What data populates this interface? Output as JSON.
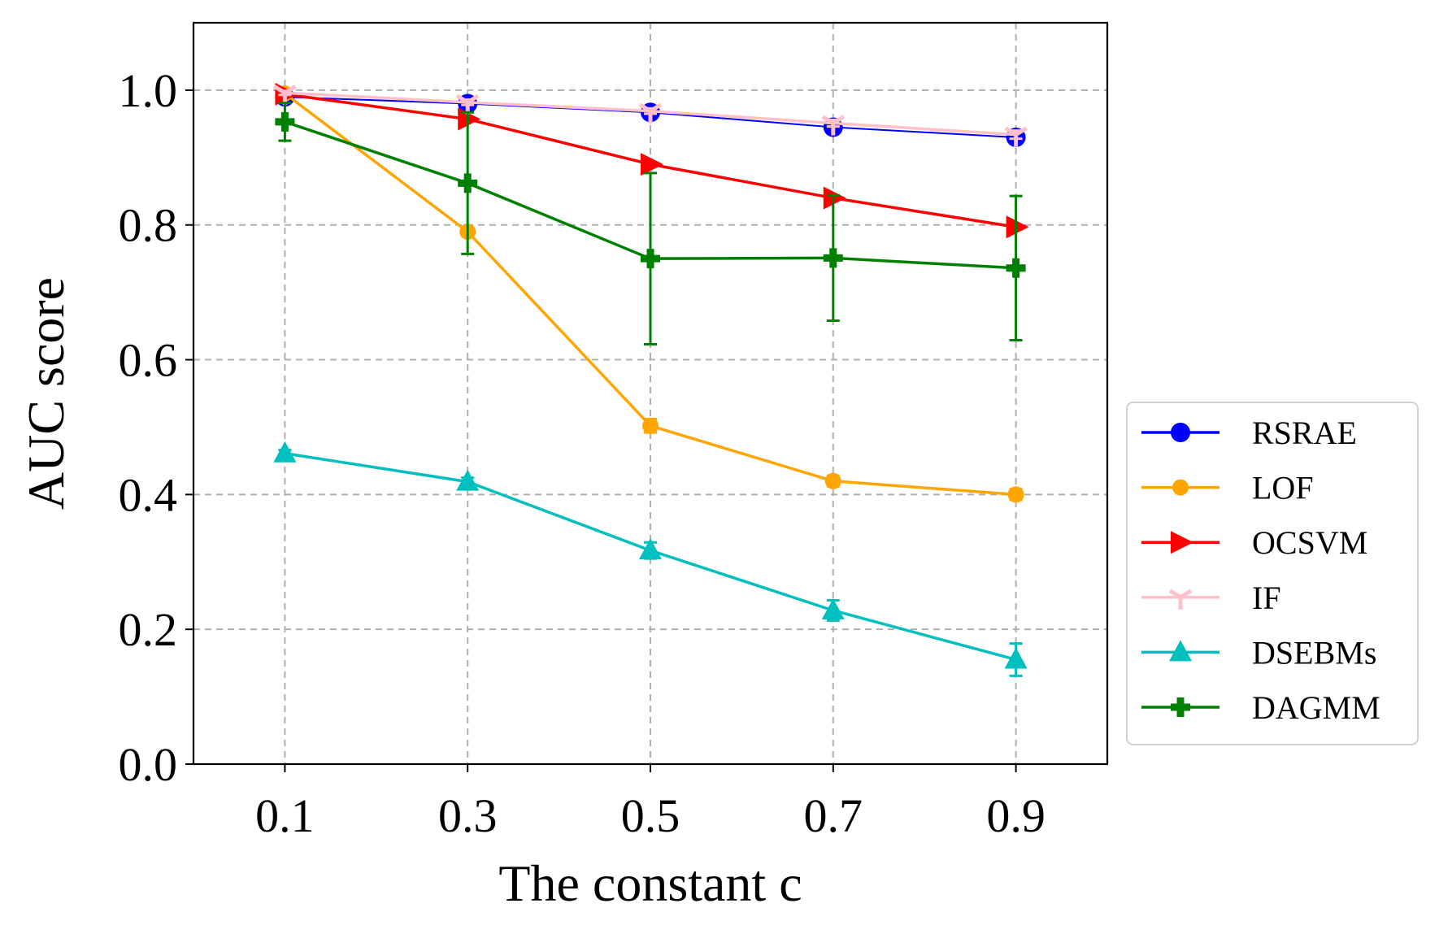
{
  "chart_data": {
    "type": "line",
    "title": "",
    "xlabel": "The constant c",
    "ylabel": "AUC score",
    "x": [
      0.1,
      0.3,
      0.5,
      0.7,
      0.9
    ],
    "x_tick_labels": [
      "0.1",
      "0.3",
      "0.5",
      "0.7",
      "0.9"
    ],
    "xlim": [
      0.0,
      1.0
    ],
    "ylim": [
      0.0,
      1.1
    ],
    "y_ticks": [
      0.0,
      0.2,
      0.4,
      0.6,
      0.8,
      1.0
    ],
    "y_tick_labels": [
      "0.0",
      "0.2",
      "0.4",
      "0.6",
      "0.8",
      "1.0"
    ],
    "grid": true,
    "legend_position": "outside-right",
    "series": [
      {
        "name": "RSRAE",
        "color": "#0000ff",
        "marker": "circle",
        "values": [
          0.99,
          0.98,
          0.967,
          0.945,
          0.93
        ],
        "errors": [
          0.005,
          0.005,
          0.005,
          0.006,
          0.006
        ]
      },
      {
        "name": "LOF",
        "color": "#ffa500",
        "marker": "circle-small",
        "values": [
          0.995,
          0.79,
          0.502,
          0.42,
          0.4
        ],
        "errors": [
          0.005,
          0.005,
          0.01,
          0.008,
          0.008
        ]
      },
      {
        "name": "OCSVM",
        "color": "#ff0000",
        "marker": "triangle-right",
        "values": [
          0.994,
          0.957,
          0.89,
          0.84,
          0.797
        ],
        "errors": [
          0,
          0,
          0,
          0,
          0
        ]
      },
      {
        "name": "IF",
        "color": "#ffc0cb",
        "marker": "tri-down",
        "values": [
          0.996,
          0.982,
          0.969,
          0.951,
          0.934
        ],
        "errors": [
          0.003,
          0.004,
          0.004,
          0.005,
          0.006
        ]
      },
      {
        "name": "DSEBMs",
        "color": "#00bfbf",
        "marker": "triangle-up",
        "values": [
          0.461,
          0.419,
          0.317,
          0.228,
          0.155
        ],
        "errors": [
          0.005,
          0.006,
          0.012,
          0.015,
          0.024
        ]
      },
      {
        "name": "DAGMM",
        "color": "#008000",
        "marker": "plus-filled",
        "values": [
          0.953,
          0.862,
          0.75,
          0.751,
          0.736
        ],
        "errors": [
          0.028,
          0.105,
          0.127,
          0.093,
          0.107
        ]
      }
    ]
  }
}
